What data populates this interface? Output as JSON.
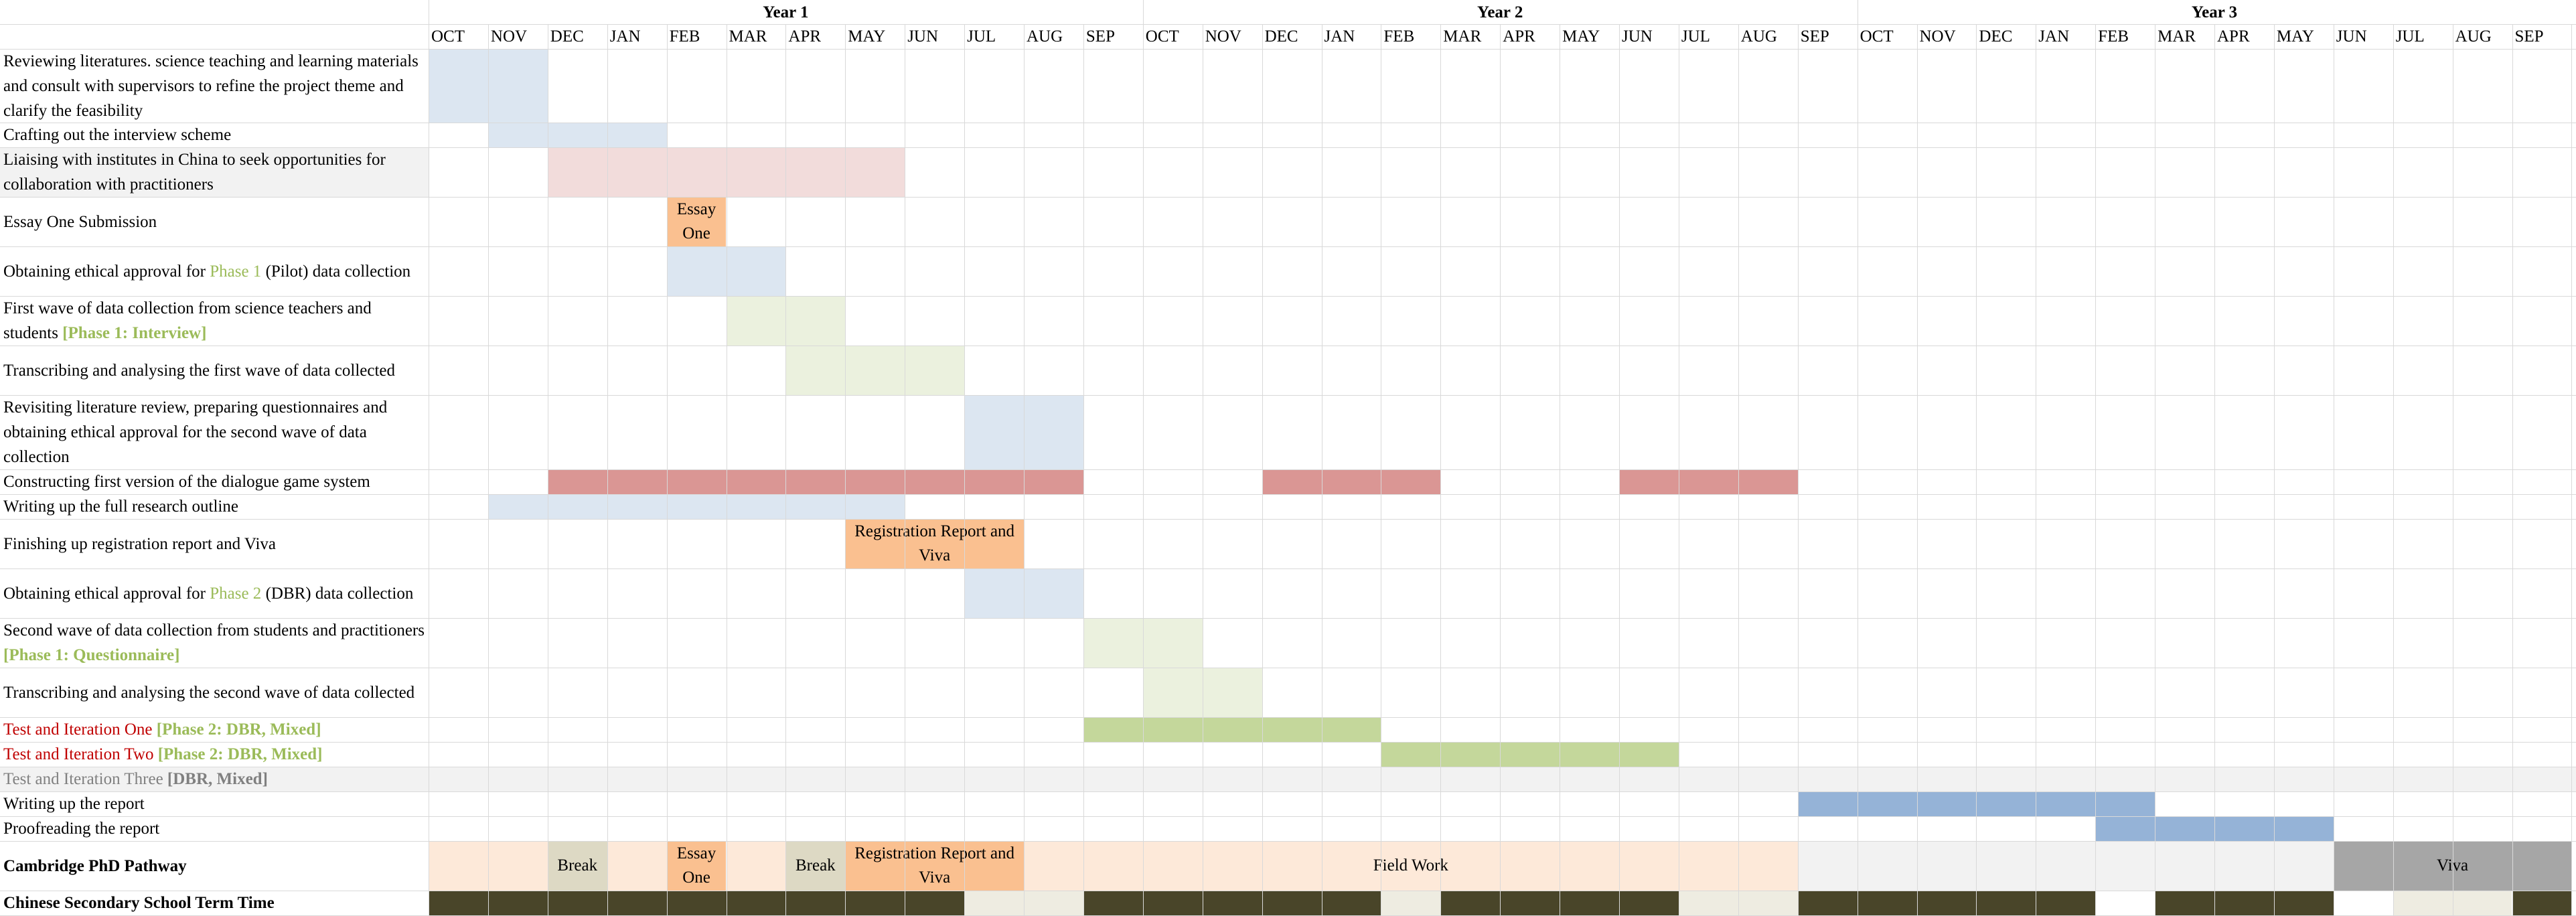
{
  "years": [
    "Year 1",
    "Year 2",
    "Year 3"
  ],
  "months": [
    "OCT",
    "NOV",
    "DEC",
    "JAN",
    "FEB",
    "MAR",
    "APR",
    "MAY",
    "JUN",
    "JUL",
    "AUG",
    "SEP",
    "OCT",
    "NOV",
    "DEC",
    "JAN",
    "FEB",
    "MAR",
    "APR",
    "MAY",
    "JUN",
    "JUL",
    "AUG",
    "SEP",
    "OCT",
    "NOV",
    "DEC",
    "JAN",
    "FEB",
    "MAR",
    "APR",
    "MAY",
    "JUN",
    "JUL",
    "AUG",
    "SEP"
  ],
  "colors": {
    "light_blue": "#dce6f1",
    "pink": "#f2dcdb",
    "orange": "#fac090",
    "light_green": "#ebf1de",
    "red_bar": "#da9694",
    "green_bar": "#c4d79b",
    "blue_bar": "#95b3d7",
    "peach": "#fde9d9",
    "khaki": "#ddd9c4",
    "light_grey": "#f2f2f2",
    "dark_grey": "#a6a6a6",
    "olive": "#494529",
    "pale_olive": "#eeece1"
  },
  "tasks": [
    {
      "id": "t1",
      "segments": [
        {
          "text": "Reviewing literatures. science teaching and learning materials and consult with supervisors to refine the project theme and clarify the feasibility",
          "style": ""
        }
      ]
    },
    {
      "id": "t2",
      "segments": [
        {
          "text": "Crafting out the interview scheme",
          "style": ""
        }
      ]
    },
    {
      "id": "t3",
      "segments": [
        {
          "text": "Liaising with institutes in China to seek opportunities for collaboration with practitioners",
          "style": ""
        }
      ]
    },
    {
      "id": "t4",
      "segments": [
        {
          "text": "Essay One Submission",
          "style": ""
        }
      ]
    },
    {
      "id": "t5",
      "segments": [
        {
          "text": "Obtaining ethical approval for ",
          "style": ""
        },
        {
          "text": "Phase 1",
          "style": "green-plain"
        },
        {
          "text": " (Pilot) data collection",
          "style": ""
        }
      ]
    },
    {
      "id": "t6",
      "segments": [
        {
          "text": "First wave of data collection from science teachers and students ",
          "style": ""
        },
        {
          "text": "[Phase 1: Interview]",
          "style": "green"
        }
      ]
    },
    {
      "id": "t7",
      "segments": [
        {
          "text": "Transcribing and analysing the first wave of data collected",
          "style": ""
        }
      ]
    },
    {
      "id": "t8",
      "segments": [
        {
          "text": "Revisiting literature review, preparing questionnaires and obtaining ethical approval for the second wave of data collection",
          "style": ""
        }
      ]
    },
    {
      "id": "t9",
      "segments": [
        {
          "text": "Constructing first version of the dialogue game system",
          "style": ""
        }
      ]
    },
    {
      "id": "t10",
      "segments": [
        {
          "text": "Writing up the full research outline",
          "style": ""
        }
      ]
    },
    {
      "id": "t11",
      "segments": [
        {
          "text": "Finishing up registration report and Viva",
          "style": ""
        }
      ]
    },
    {
      "id": "t12",
      "segments": [
        {
          "text": "Obtaining ethical approval for ",
          "style": ""
        },
        {
          "text": "Phase 2",
          "style": "green-plain"
        },
        {
          "text": " (DBR) data collection",
          "style": ""
        }
      ]
    },
    {
      "id": "t13",
      "segments": [
        {
          "text": "Second wave of data collection from students and practitioners ",
          "style": ""
        },
        {
          "text": "[Phase 1: Questionnaire]",
          "style": "green"
        }
      ]
    },
    {
      "id": "t14",
      "segments": [
        {
          "text": "Transcribing and analysing the second wave of data collected",
          "style": ""
        }
      ]
    },
    {
      "id": "t15",
      "segments": [
        {
          "text": "Test and Iteration One ",
          "style": "red"
        },
        {
          "text": "[Phase 2: DBR, Mixed]",
          "style": "green"
        }
      ]
    },
    {
      "id": "t16",
      "segments": [
        {
          "text": "Test and Iteration Two ",
          "style": "red"
        },
        {
          "text": "[Phase 2: DBR, Mixed]",
          "style": "green"
        }
      ]
    },
    {
      "id": "t17",
      "segments": [
        {
          "text": "Test and Iteration Three ",
          "style": "grey"
        },
        {
          "text": "[DBR, Mixed]",
          "style": "grey bold"
        }
      ]
    },
    {
      "id": "t18",
      "segments": [
        {
          "text": "Writing up the report",
          "style": ""
        }
      ]
    },
    {
      "id": "t19",
      "segments": [
        {
          "text": "Proofreading the report",
          "style": ""
        }
      ]
    },
    {
      "id": "t20",
      "segments": [
        {
          "text": "Cambridge PhD Pathway",
          "style": "bold"
        }
      ]
    },
    {
      "id": "t21",
      "segments": [
        {
          "text": "Chinese Secondary School Term Time",
          "style": "bold"
        }
      ]
    }
  ],
  "bars": [
    {
      "task": "t1",
      "start": 0,
      "end": 2,
      "color": "light_blue"
    },
    {
      "task": "t2",
      "start": 1,
      "end": 4,
      "color": "light_blue"
    },
    {
      "task": "t3",
      "start": 2,
      "end": 8,
      "color": "pink"
    },
    {
      "task": "t4",
      "start": 4,
      "end": 5,
      "color": "orange",
      "label": "Essay One"
    },
    {
      "task": "t5",
      "start": 4,
      "end": 6,
      "color": "light_blue"
    },
    {
      "task": "t6",
      "start": 5,
      "end": 7,
      "color": "light_green"
    },
    {
      "task": "t7",
      "start": 6,
      "end": 9,
      "color": "light_green"
    },
    {
      "task": "t8",
      "start": 9,
      "end": 11,
      "color": "light_blue"
    },
    {
      "task": "t9",
      "start": 2,
      "end": 11,
      "color": "red_bar"
    },
    {
      "task": "t9",
      "start": 14,
      "end": 17,
      "color": "red_bar"
    },
    {
      "task": "t9",
      "start": 20,
      "end": 23,
      "color": "red_bar"
    },
    {
      "task": "t10",
      "start": 1,
      "end": 8,
      "color": "light_blue"
    },
    {
      "task": "t11",
      "start": 7,
      "end": 10,
      "color": "orange",
      "label": "Registration Report and Viva"
    },
    {
      "task": "t12",
      "start": 9,
      "end": 11,
      "color": "light_blue"
    },
    {
      "task": "t13",
      "start": 11,
      "end": 13,
      "color": "light_green"
    },
    {
      "task": "t14",
      "start": 12,
      "end": 14,
      "color": "light_green"
    },
    {
      "task": "t15",
      "start": 11,
      "end": 16,
      "color": "green_bar"
    },
    {
      "task": "t16",
      "start": 16,
      "end": 21,
      "color": "green_bar"
    },
    {
      "task": "t18",
      "start": 23,
      "end": 29,
      "color": "blue_bar"
    },
    {
      "task": "t19",
      "start": 28,
      "end": 32,
      "color": "blue_bar"
    },
    {
      "task": "t20",
      "start": 0,
      "end": 2,
      "color": "peach"
    },
    {
      "task": "t20",
      "start": 2,
      "end": 3,
      "color": "khaki",
      "label": "Break"
    },
    {
      "task": "t20",
      "start": 3,
      "end": 4,
      "color": "peach"
    },
    {
      "task": "t20",
      "start": 4,
      "end": 5,
      "color": "orange",
      "label": "Essay One"
    },
    {
      "task": "t20",
      "start": 5,
      "end": 6,
      "color": "peach"
    },
    {
      "task": "t20",
      "start": 6,
      "end": 7,
      "color": "khaki",
      "label": "Break"
    },
    {
      "task": "t20",
      "start": 7,
      "end": 10,
      "color": "orange",
      "label": "Registration Report and Viva"
    },
    {
      "task": "t20",
      "start": 10,
      "end": 23,
      "color": "peach",
      "label": "Field Work"
    },
    {
      "task": "t20",
      "start": 23,
      "end": 32,
      "color": "light_grey"
    },
    {
      "task": "t20",
      "start": 32,
      "end": 36,
      "color": "dark_grey",
      "label": "Viva"
    },
    {
      "task": "t21",
      "start": 0,
      "end": 5,
      "color": "olive"
    },
    {
      "task": "t21",
      "start": 5,
      "end": 9,
      "color": "olive"
    },
    {
      "task": "t21",
      "start": 9,
      "end": 11,
      "color": "pale_olive"
    },
    {
      "task": "t21",
      "start": 11,
      "end": 16,
      "color": "olive"
    },
    {
      "task": "t21",
      "start": 16,
      "end": 17,
      "color": "pale_olive"
    },
    {
      "task": "t21",
      "start": 17,
      "end": 21,
      "color": "olive"
    },
    {
      "task": "t21",
      "start": 21,
      "end": 23,
      "color": "pale_olive"
    },
    {
      "task": "t21",
      "start": 23,
      "end": 28,
      "color": "olive"
    },
    {
      "task": "t21",
      "start": 29,
      "end": 32,
      "color": "olive"
    },
    {
      "task": "t21",
      "start": 33,
      "end": 35,
      "color": "pale_olive"
    },
    {
      "task": "t21",
      "start": 35,
      "end": 36,
      "color": "olive"
    }
  ]
}
